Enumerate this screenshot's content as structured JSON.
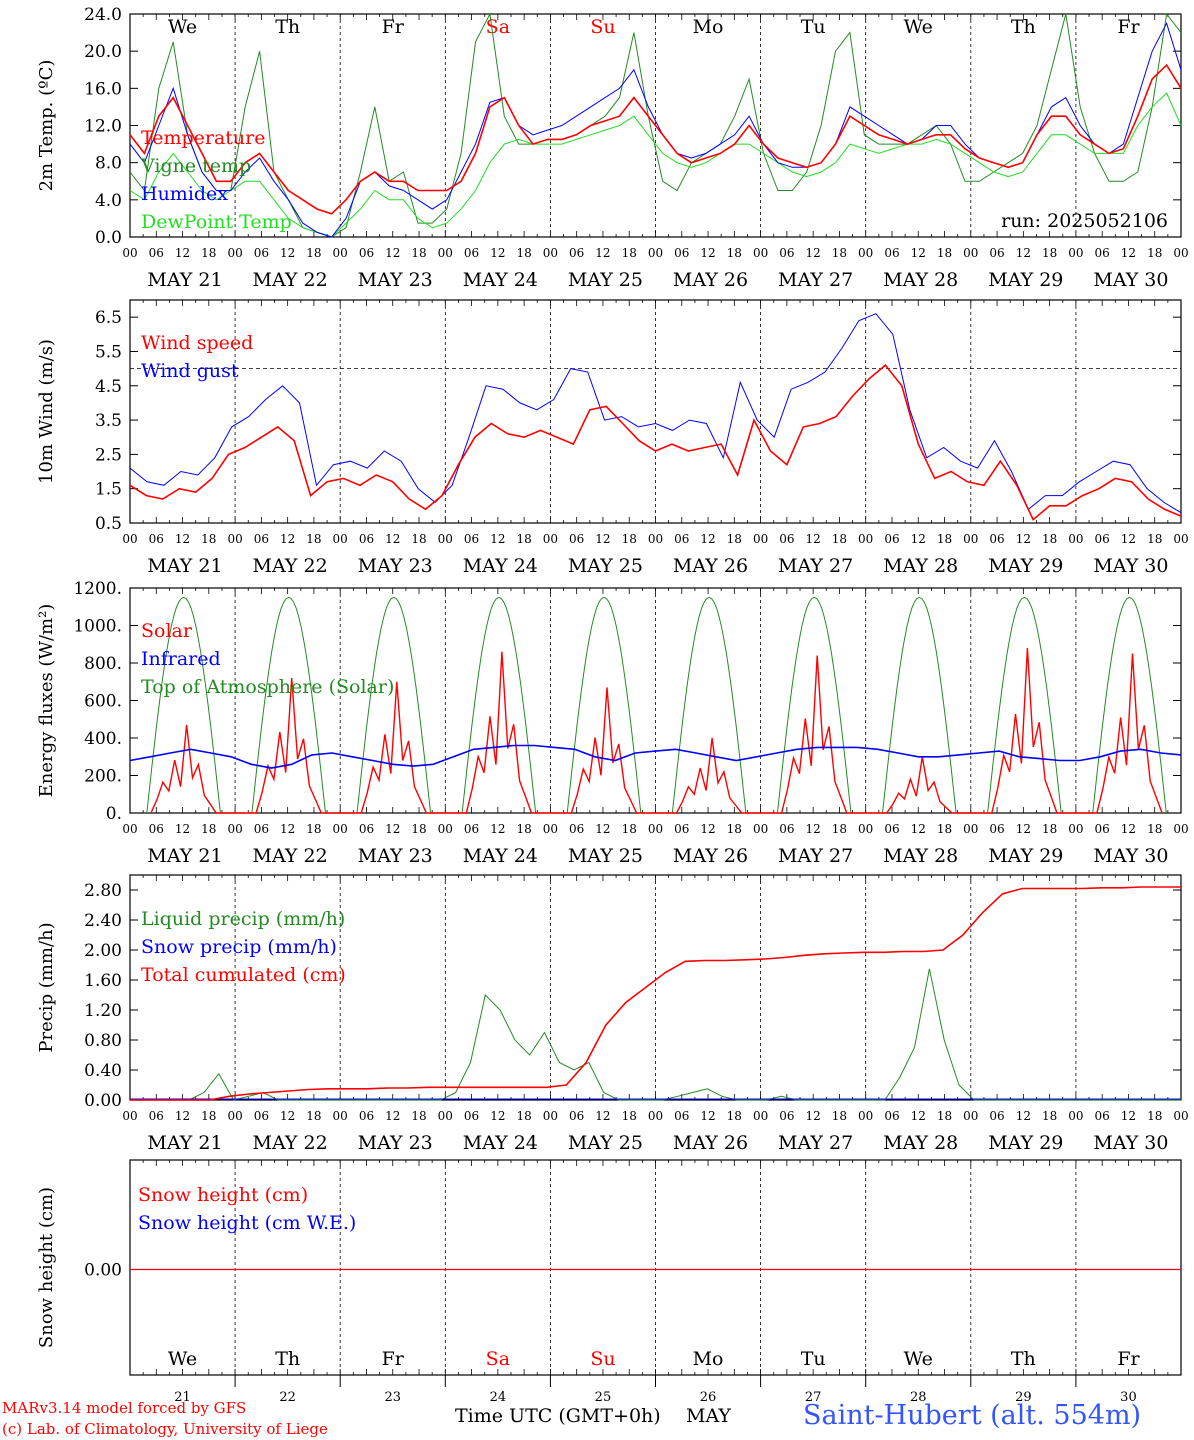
{
  "days": [
    "We",
    "Th",
    "Fr",
    "Sa",
    "Su",
    "Mo",
    "Tu",
    "We",
    "Th",
    "Fr"
  ],
  "weekend_flags": [
    false,
    false,
    false,
    true,
    true,
    false,
    false,
    false,
    false,
    false
  ],
  "date_labels": [
    "MAY 21",
    "MAY 22",
    "MAY 23",
    "MAY 24",
    "MAY 25",
    "MAY 26",
    "MAY 27",
    "MAY 28",
    "MAY 29",
    "MAY 30"
  ],
  "day_numbers": [
    "21",
    "22",
    "23",
    "24",
    "25",
    "26",
    "27",
    "28",
    "29",
    "30"
  ],
  "hour_ticks": [
    "00",
    "06",
    "12",
    "18"
  ],
  "hour_end": "00",
  "month_label": "MAY",
  "time_axis_label": "Time UTC (GMT+0h)",
  "footer": {
    "model": "MARv3.14 model forced by GFS",
    "credit": "(c) Lab. of Climatology, University of Liege",
    "station": "Saint-Hubert (alt. 554m)"
  },
  "colors": {
    "red": "#ff0000",
    "green": "#228b22",
    "blue": "#0000ff",
    "lightgreen": "#22dd22",
    "station": "#3355ff"
  },
  "chart_data": [
    {
      "type": "line",
      "ylabel": "2m Temp. (ºC)",
      "ylim": [
        0,
        24
      ],
      "yticks": [
        "0.0",
        "4.0",
        "8.0",
        "12.0",
        "16.0",
        "20.0",
        "24.0"
      ],
      "annotation": "run: 2025052106",
      "x_hours_step": 6,
      "series": [
        {
          "name": "Temperature",
          "color": "red",
          "values": [
            11,
            9,
            13,
            15,
            12,
            9,
            6,
            6,
            8,
            9,
            7,
            5,
            4,
            3,
            2.5,
            4,
            6,
            7,
            6,
            6,
            5,
            5,
            5,
            6,
            9,
            14,
            15,
            12,
            10,
            10.5,
            10.5,
            11,
            12,
            12.5,
            13,
            15,
            13,
            11,
            9,
            8,
            8.5,
            9,
            10,
            12,
            10,
            8.5,
            8,
            7.5,
            8,
            10,
            13,
            12,
            11,
            10.5,
            10,
            10.5,
            11,
            11,
            9.5,
            8.5,
            8,
            7.5,
            8,
            11,
            13,
            13,
            11,
            10,
            9,
            9.5,
            13,
            17,
            18.5,
            16
          ]
        },
        {
          "name": "Vigne temp",
          "color": "green",
          "values": [
            7,
            5,
            16,
            21,
            11,
            7,
            5,
            5,
            14,
            20,
            7,
            4,
            1,
            0.5,
            0,
            1,
            7,
            14,
            6,
            7,
            1.5,
            1.5,
            3,
            9,
            21,
            24,
            13,
            10,
            10,
            10.5,
            10.5,
            11,
            12,
            13,
            15,
            22,
            13,
            6,
            5,
            8,
            9,
            10,
            13,
            17,
            9,
            5,
            5,
            7,
            12,
            20,
            22,
            11,
            10,
            10,
            10,
            11,
            12,
            10,
            6,
            6,
            7,
            8,
            9,
            12,
            18,
            24,
            14,
            9,
            6,
            6,
            7,
            14,
            24,
            22
          ]
        },
        {
          "name": "Humidex",
          "color": "blue",
          "values": [
            10,
            8,
            12,
            16,
            11,
            7,
            5,
            5,
            7,
            8.5,
            6,
            4,
            1.5,
            0.5,
            0,
            2,
            6,
            7,
            5.5,
            5,
            4,
            3,
            4,
            7,
            10,
            14.5,
            15,
            12,
            11,
            11.5,
            12,
            13,
            14,
            15,
            16,
            18,
            14,
            11,
            9,
            8.5,
            9,
            10,
            11,
            13,
            10,
            8,
            7.5,
            7.5,
            8,
            10,
            14,
            13,
            12,
            11,
            10,
            10.5,
            12,
            12,
            10,
            8.5,
            8,
            7.5,
            8,
            11,
            14,
            15,
            12,
            10,
            9,
            10,
            15,
            20,
            23,
            18
          ]
        },
        {
          "name": "DewPoint Temp",
          "color": "lightgreen",
          "values": [
            5,
            4,
            7,
            9,
            7,
            5,
            4,
            5,
            6,
            6,
            4,
            2,
            1,
            0.5,
            0,
            1.5,
            3,
            5,
            4,
            4,
            2,
            1,
            1.5,
            3,
            5,
            8,
            10,
            10.5,
            10,
            10,
            10,
            10.5,
            11,
            11.5,
            12,
            13,
            11,
            9,
            8,
            7.5,
            8,
            9,
            10,
            10,
            9,
            8,
            7,
            6.5,
            7,
            8,
            10,
            9.5,
            9,
            9.5,
            10,
            10,
            10.5,
            10,
            9,
            8,
            7,
            6.5,
            7,
            9,
            11,
            11,
            10,
            9,
            9,
            9,
            12,
            14,
            15.5,
            12
          ]
        }
      ]
    },
    {
      "type": "line",
      "ylabel": "10m Wind (m/s)",
      "ylim": [
        0.5,
        7
      ],
      "yticks": [
        "0.5",
        "1.5",
        "2.5",
        "3.5",
        "4.5",
        "5.5",
        "6.5"
      ],
      "reference_line": 5,
      "series": [
        {
          "name": "Wind speed",
          "color": "red",
          "values": [
            1.6,
            1.3,
            1.2,
            1.5,
            1.4,
            1.8,
            2.5,
            2.7,
            3.0,
            3.3,
            2.9,
            1.3,
            1.7,
            1.8,
            1.6,
            1.9,
            1.7,
            1.2,
            0.9,
            1.3,
            2.2,
            3.0,
            3.4,
            3.1,
            3.0,
            3.2,
            3.0,
            2.8,
            3.8,
            3.9,
            3.4,
            2.9,
            2.6,
            2.8,
            2.6,
            2.7,
            2.8,
            1.9,
            3.5,
            2.6,
            2.2,
            3.3,
            3.4,
            3.6,
            4.2,
            4.7,
            5.1,
            4.5,
            2.8,
            1.8,
            2.0,
            1.7,
            1.6,
            2.3,
            1.6,
            0.6,
            1.0,
            1.0,
            1.3,
            1.5,
            1.8,
            1.7,
            1.2,
            0.9,
            0.7
          ]
        },
        {
          "name": "Wind gust",
          "color": "blue",
          "values": [
            2.1,
            1.7,
            1.6,
            2.0,
            1.9,
            2.4,
            3.3,
            3.6,
            4.1,
            4.5,
            4.0,
            1.6,
            2.2,
            2.3,
            2.1,
            2.6,
            2.3,
            1.5,
            1.1,
            1.6,
            3.0,
            4.5,
            4.4,
            4.0,
            3.8,
            4.1,
            5.0,
            4.9,
            3.5,
            3.6,
            3.3,
            3.4,
            3.2,
            3.5,
            3.4,
            2.4,
            4.6,
            3.5,
            3.0,
            4.4,
            4.6,
            4.9,
            5.6,
            6.4,
            6.6,
            6.0,
            3.8,
            2.4,
            2.7,
            2.3,
            2.1,
            2.9,
            2.0,
            0.9,
            1.3,
            1.3,
            1.7,
            2.0,
            2.3,
            2.2,
            1.5,
            1.1,
            0.8
          ]
        }
      ]
    },
    {
      "type": "line",
      "ylabel": "Energy fluxes (W/m²)",
      "ylim": [
        0,
        1200
      ],
      "yticks": [
        "0.",
        "200.",
        "400.",
        "600.",
        "800.",
        "1000.",
        "1200."
      ],
      "series": [
        {
          "name": "Solar",
          "color": "red",
          "peaks": [
            470,
            720,
            700,
            860,
            670,
            400,
            840,
            300,
            880,
            850
          ]
        },
        {
          "name": "Infrared",
          "color": "blue",
          "values": [
            280,
            300,
            320,
            340,
            320,
            300,
            260,
            240,
            260,
            310,
            320,
            300,
            280,
            260,
            250,
            260,
            300,
            340,
            350,
            360,
            360,
            350,
            340,
            300,
            280,
            320,
            330,
            340,
            320,
            300,
            280,
            300,
            320,
            340,
            350,
            350,
            350,
            340,
            320,
            300,
            300,
            310,
            320,
            330,
            300,
            290,
            280,
            280,
            300,
            330,
            340,
            320,
            310
          ]
        },
        {
          "name": "Top of Atmosphere (Solar)",
          "color": "green",
          "peak": 1150
        }
      ]
    },
    {
      "type": "line",
      "ylabel": "Precip (mm/h)",
      "ylim": [
        0,
        3
      ],
      "yticks": [
        "0.00",
        "0.40",
        "0.80",
        "1.20",
        "1.60",
        "2.00",
        "2.40",
        "2.80"
      ],
      "series": [
        {
          "name": "Liquid precip (mm/h)",
          "color": "green",
          "values": [
            0,
            0,
            0,
            0,
            0,
            0.1,
            0.35,
            0,
            0.05,
            0.1,
            0,
            0,
            0,
            0,
            0,
            0,
            0,
            0,
            0,
            0,
            0,
            0,
            0.1,
            0.5,
            1.4,
            1.2,
            0.8,
            0.6,
            0.9,
            0.5,
            0.4,
            0.5,
            0.1,
            0,
            0,
            0,
            0,
            0.05,
            0.1,
            0.15,
            0.05,
            0,
            0,
            0,
            0.05,
            0,
            0,
            0,
            0,
            0,
            0,
            0,
            0.3,
            0.7,
            1.75,
            0.8,
            0.2,
            0,
            0,
            0,
            0,
            0,
            0,
            0,
            0,
            0,
            0,
            0,
            0,
            0,
            0,
            0
          ]
        },
        {
          "name": "Snow precip (mm/h)",
          "color": "blue",
          "values": [
            0
          ]
        },
        {
          "name": "Total cumulated (cm)",
          "color": "red",
          "values": [
            0,
            0,
            0,
            0,
            0,
            0.05,
            0.08,
            0.1,
            0.12,
            0.14,
            0.15,
            0.15,
            0.15,
            0.16,
            0.16,
            0.17,
            0.17,
            0.17,
            0.17,
            0.17,
            0.17,
            0.17,
            0.2,
            0.5,
            1.0,
            1.3,
            1.5,
            1.7,
            1.85,
            1.86,
            1.86,
            1.87,
            1.88,
            1.9,
            1.93,
            1.95,
            1.96,
            1.97,
            1.97,
            1.98,
            1.98,
            2.0,
            2.2,
            2.5,
            2.75,
            2.82,
            2.82,
            2.82,
            2.82,
            2.83,
            2.83,
            2.84,
            2.84,
            2.84
          ]
        }
      ]
    },
    {
      "type": "line",
      "ylabel": "Snow height (cm)",
      "yticks": [
        "0.00"
      ],
      "series": [
        {
          "name": "Snow height (cm)",
          "color": "red",
          "values": [
            0
          ]
        },
        {
          "name": "Snow height (cm W.E.)",
          "color": "blue",
          "values": [
            0
          ]
        }
      ]
    }
  ]
}
